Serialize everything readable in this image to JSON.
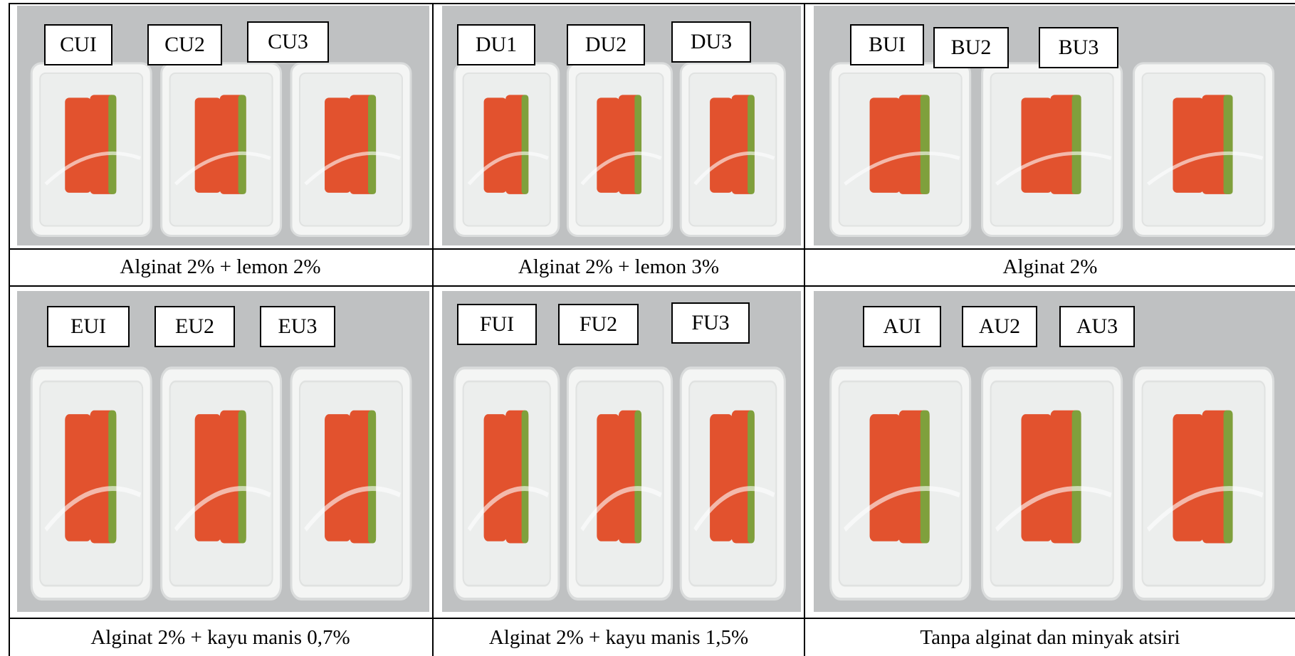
{
  "panels": [
    {
      "labels": [
        "CUI",
        "CU2",
        "CU3"
      ],
      "caption": "Alginat 2% + lemon 2%"
    },
    {
      "labels": [
        "DU1",
        "DU2",
        "DU3"
      ],
      "caption": "Alginat 2% + lemon 3%"
    },
    {
      "labels": [
        "BUI",
        "BU2",
        "BU3"
      ],
      "caption": "Alginat 2%"
    },
    {
      "labels": [
        "EUI",
        "EU2",
        "EU3"
      ],
      "caption": "Alginat 2% + kayu manis 0,7%"
    },
    {
      "labels": [
        "FUI",
        "FU2",
        "FU3"
      ],
      "caption": "Alginat 2% + kayu manis 1,5%"
    },
    {
      "labels": [
        "AUI",
        "AU2",
        "AU3"
      ],
      "caption": "Tanpa alginat dan minyak atsiri"
    }
  ],
  "colors": {
    "flesh": "#e2522e",
    "skin": "#7fa03c",
    "tray": "#f4f5f4",
    "background": "#bfc1c2"
  }
}
